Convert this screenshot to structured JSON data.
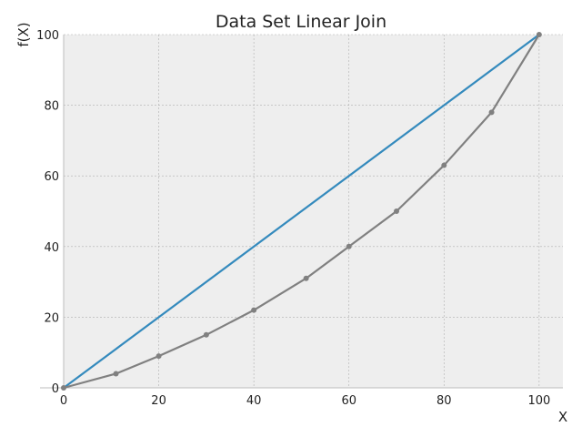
{
  "chart_data": {
    "type": "line",
    "title": "Data Set Linear Join",
    "xlabel": "X",
    "ylabel": "f(X)",
    "xlim": [
      0,
      105
    ],
    "ylim": [
      0,
      100
    ],
    "x_ticks": [
      0,
      20,
      40,
      60,
      80,
      100
    ],
    "y_ticks": [
      0,
      20,
      40,
      60,
      80,
      100
    ],
    "grid": true,
    "legend": "none",
    "series": [
      {
        "color": "#348ABD",
        "markers": false,
        "x": [
          0,
          100
        ],
        "y": [
          0,
          100
        ]
      },
      {
        "color": "#808080",
        "markers": true,
        "x": [
          0,
          11,
          20,
          30,
          40,
          51,
          60,
          70,
          80,
          90,
          100
        ],
        "y": [
          0,
          4,
          9,
          15,
          22,
          31,
          40,
          50,
          63,
          78,
          100
        ]
      }
    ]
  },
  "colors": {
    "plot_background": "#EEEEEE",
    "grid": "#B0B0B0",
    "axis": "#BCBCBC"
  }
}
